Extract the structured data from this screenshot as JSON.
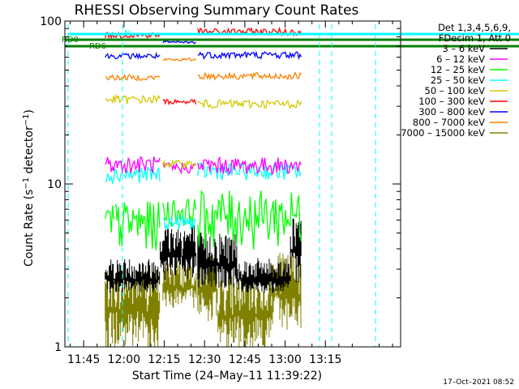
{
  "chart_data": {
    "type": "line",
    "title": "RHESSI Observing Summary Count Rates",
    "xlabel": "Start Time (24–May–11 11:39:22)",
    "ylabel_main": "Count Rate (s",
    "ylabel_sup": "−1",
    "ylabel_mid": " detector",
    "ylabel_sup2": "−1",
    "ylabel_end": ")",
    "yscale": "log",
    "ylim": [
      1,
      100
    ],
    "yticks": [
      {
        "value": 1,
        "label": "1"
      },
      {
        "value": 10,
        "label": "10"
      },
      {
        "value": 100,
        "label": "100"
      }
    ],
    "xlim_minutes": [
      -22,
      103
    ],
    "xticks": [
      {
        "minute": -15,
        "label": "11:45"
      },
      {
        "minute": 0,
        "label": "12:00"
      },
      {
        "minute": 15,
        "label": "12:15"
      },
      {
        "minute": 30,
        "label": "12:30"
      },
      {
        "minute": 45,
        "label": "12:45"
      },
      {
        "minute": 60,
        "label": "13:00"
      },
      {
        "minute": 75,
        "label": "13:15"
      }
    ],
    "legend": {
      "placement": "right",
      "header": [
        "Det 1,3,4,5,6,9,",
        "FDecim 1, Att 0"
      ],
      "entries": [
        {
          "label": "3 – 6 keV",
          "color": "#000000"
        },
        {
          "label": "6 – 12 keV",
          "color": "#ff00ff"
        },
        {
          "label": "12 – 25 keV",
          "color": "#00ff00"
        },
        {
          "label": "25 – 50 keV",
          "color": "#00ffff"
        },
        {
          "label": "50 – 100 keV",
          "color": "#d4c800"
        },
        {
          "label": "100 – 300 keV",
          "color": "#ff0000"
        },
        {
          "label": "300 – 800 keV",
          "color": "#0000ff"
        },
        {
          "label": "800 – 7000 keV",
          "color": "#ff8000"
        },
        {
          "label": "7000 – 15000 keV",
          "color": "#808000"
        }
      ]
    },
    "flag_labels": [
      {
        "label": "RD0",
        "color": "#008000"
      },
      {
        "label": "RD6",
        "color": "#008000"
      },
      {
        "label": "N",
        "color": "#00ffff"
      }
    ],
    "gaps_minutes": [
      [
        -22,
        -7
      ],
      [
        13.5,
        14.5
      ],
      [
        27,
        27.5
      ],
      [
        66,
        103
      ]
    ],
    "series": [
      {
        "key": "b7000",
        "color": "#808000",
        "segments": [
          {
            "from": -7,
            "to": 13.5,
            "level": 1.65,
            "noise": 0.9,
            "style": "fill"
          },
          {
            "from": 14.5,
            "to": 27,
            "level": 2.3,
            "noise": 0.5,
            "style": "fill"
          },
          {
            "from": 27.5,
            "to": 35,
            "level": 2.2,
            "noise": 0.7,
            "style": "fill"
          },
          {
            "from": 35,
            "to": 55,
            "level": 1.55,
            "noise": 0.8,
            "style": "fill"
          },
          {
            "from": 55,
            "to": 66,
            "level": 2.1,
            "noise": 0.8,
            "style": "fill"
          }
        ]
      },
      {
        "key": "b3",
        "color": "#000000",
        "segments": [
          {
            "from": -7,
            "to": 13.5,
            "level": 2.6,
            "noise": 0.35,
            "style": "fill"
          },
          {
            "from": 13.5,
            "to": 27,
            "level": 3.6,
            "noise": 0.6,
            "style": "fill"
          },
          {
            "from": 27.5,
            "to": 42,
            "level": 3.2,
            "noise": 0.6,
            "style": "fill"
          },
          {
            "from": 42,
            "to": 62,
            "level": 2.6,
            "noise": 0.35,
            "style": "fill"
          },
          {
            "from": 62,
            "to": 66,
            "level": 3.8,
            "noise": 0.7,
            "style": "fill"
          }
        ]
      },
      {
        "key": "b12",
        "color": "#00ff00",
        "segments": [
          {
            "from": -7,
            "to": -3,
            "level": 5.5,
            "noise": 0.4,
            "style": "line"
          },
          {
            "from": -3,
            "to": 13.5,
            "level": 5.8,
            "noise": 0.35,
            "style": "line"
          },
          {
            "from": 14.5,
            "to": 27,
            "level": 6.8,
            "noise": 0.2,
            "style": "line"
          },
          {
            "from": 27.5,
            "to": 66,
            "level": 6.5,
            "noise": 0.4,
            "style": "line"
          }
        ]
      },
      {
        "key": "b25",
        "color": "#00ffff",
        "segments": [
          {
            "from": -7,
            "to": 13.5,
            "level": 11.5,
            "noise": 0.12,
            "style": "line"
          },
          {
            "from": 14.5,
            "to": 27,
            "level": 5.8,
            "noise": 0.1,
            "style": "line"
          },
          {
            "from": 27.5,
            "to": 66,
            "level": 12.0,
            "noise": 0.12,
            "style": "line"
          }
        ]
      },
      {
        "key": "b6",
        "color": "#ff00ff",
        "segments": [
          {
            "from": -7,
            "to": 13.5,
            "level": 13.2,
            "noise": 0.12,
            "style": "line"
          },
          {
            "from": 14.5,
            "to": 27,
            "level": 12.6,
            "noise": 0.08,
            "style": "line"
          },
          {
            "from": 27.5,
            "to": 66,
            "level": 13.0,
            "noise": 0.12,
            "style": "line"
          }
        ]
      },
      {
        "key": "b50",
        "color": "#d4c800",
        "segments": [
          {
            "from": -7,
            "to": 13.5,
            "level": 33,
            "noise": 0.06,
            "style": "line"
          },
          {
            "from": 14.5,
            "to": 27,
            "level": 13.3,
            "noise": 0.05,
            "style": "line"
          },
          {
            "from": 27.5,
            "to": 66,
            "level": 31,
            "noise": 0.06,
            "style": "line"
          }
        ]
      },
      {
        "key": "b100",
        "color": "#ff0000",
        "segments": [
          {
            "from": -7,
            "to": 13.5,
            "level": 82,
            "noise": 0.04,
            "style": "line"
          },
          {
            "from": 14.5,
            "to": 27,
            "level": 32,
            "noise": 0.04,
            "style": "line"
          },
          {
            "from": 27.5,
            "to": 66,
            "level": 86,
            "noise": 0.05,
            "style": "line"
          }
        ]
      },
      {
        "key": "b300",
        "color": "#0000ff",
        "segments": [
          {
            "from": -7,
            "to": 13.5,
            "level": 61,
            "noise": 0.04,
            "style": "line"
          },
          {
            "from": 14.5,
            "to": 27,
            "level": 74,
            "noise": 0.02,
            "style": "line"
          },
          {
            "from": 27.5,
            "to": 66,
            "level": 62,
            "noise": 0.05,
            "style": "line"
          }
        ]
      },
      {
        "key": "b800",
        "color": "#ff8000",
        "segments": [
          {
            "from": -7,
            "to": 13.5,
            "level": 45,
            "noise": 0.04,
            "style": "line"
          },
          {
            "from": 14.5,
            "to": 27,
            "level": 58,
            "noise": 0.02,
            "style": "line"
          },
          {
            "from": 27.5,
            "to": 66,
            "level": 46,
            "noise": 0.05,
            "style": "line"
          }
        ]
      }
    ]
  },
  "footer": {
    "date": "17–Oct–2021 08:52"
  }
}
